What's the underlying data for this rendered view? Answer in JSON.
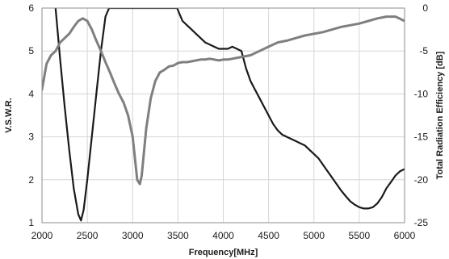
{
  "chart_data": {
    "type": "line",
    "xlabel": "Frequency[MHz]",
    "ylabel": "V.S.W.R.",
    "y2label": "Total Radiation Efficiency [dB]",
    "xlim": [
      2000,
      6000
    ],
    "ylim": [
      1,
      6
    ],
    "y2lim": [
      -25,
      0
    ],
    "xticks": [
      2000,
      2500,
      3000,
      3500,
      4000,
      4500,
      5000,
      5500,
      6000
    ],
    "yticks": [
      1,
      2,
      3,
      4,
      5,
      6
    ],
    "y2ticks": [
      0,
      -5,
      -10,
      -15,
      -20,
      -25
    ],
    "grid": true,
    "series": [
      {
        "axis": "left",
        "color": "#1a1a1a",
        "x": [
          2150,
          2200,
          2250,
          2300,
          2350,
          2400,
          2430,
          2460,
          2500,
          2550,
          2600,
          2650,
          2700,
          2740,
          3490,
          3520,
          3550,
          3600,
          3650,
          3700,
          3750,
          3800,
          3850,
          3900,
          3950,
          4000,
          4050,
          4100,
          4150,
          4200,
          4250,
          4300,
          4350,
          4400,
          4450,
          4500,
          4550,
          4600,
          4650,
          4700,
          4750,
          4800,
          4850,
          4900,
          4950,
          5000,
          5050,
          5100,
          5150,
          5200,
          5250,
          5300,
          5350,
          5400,
          5450,
          5500,
          5550,
          5600,
          5650,
          5700,
          5750,
          5800,
          5850,
          5900,
          5950,
          6000
        ],
        "y": [
          6.0,
          4.8,
          3.7,
          2.7,
          1.8,
          1.2,
          1.05,
          1.3,
          2.0,
          3.0,
          4.0,
          5.0,
          5.8,
          6.0,
          6.0,
          5.85,
          5.7,
          5.6,
          5.5,
          5.4,
          5.3,
          5.2,
          5.15,
          5.1,
          5.05,
          5.05,
          5.05,
          5.1,
          5.05,
          5.0,
          4.6,
          4.3,
          4.1,
          3.9,
          3.7,
          3.5,
          3.3,
          3.15,
          3.05,
          3.0,
          2.95,
          2.9,
          2.85,
          2.8,
          2.7,
          2.6,
          2.5,
          2.35,
          2.2,
          2.05,
          1.9,
          1.75,
          1.62,
          1.5,
          1.42,
          1.36,
          1.33,
          1.33,
          1.36,
          1.45,
          1.6,
          1.8,
          1.95,
          2.1,
          2.2,
          2.25
        ]
      },
      {
        "axis": "right",
        "color": "#7f7f7f",
        "x": [
          2000,
          2050,
          2100,
          2150,
          2200,
          2250,
          2300,
          2350,
          2400,
          2450,
          2500,
          2550,
          2600,
          2650,
          2700,
          2750,
          2800,
          2850,
          2900,
          2950,
          3000,
          3050,
          3080,
          3100,
          3150,
          3200,
          3250,
          3300,
          3350,
          3400,
          3450,
          3500,
          3550,
          3600,
          3650,
          3700,
          3750,
          3800,
          3850,
          3900,
          3950,
          4000,
          4050,
          4100,
          4150,
          4200,
          4300,
          4400,
          4500,
          4600,
          4700,
          4800,
          4900,
          5000,
          5100,
          5200,
          5300,
          5400,
          5500,
          5600,
          5700,
          5800,
          5900,
          6000
        ],
        "y": [
          -9.5,
          -6.5,
          -5.5,
          -5.0,
          -4.0,
          -3.5,
          -3.0,
          -2.2,
          -1.5,
          -1.2,
          -1.5,
          -2.5,
          -3.8,
          -5.0,
          -6.3,
          -7.5,
          -8.8,
          -10.0,
          -11.0,
          -12.5,
          -15.0,
          -20.0,
          -20.5,
          -19.5,
          -14.0,
          -10.5,
          -8.5,
          -7.5,
          -7.2,
          -6.8,
          -6.7,
          -6.4,
          -6.3,
          -6.3,
          -6.2,
          -6.1,
          -6.0,
          -6.0,
          -5.9,
          -6.0,
          -6.1,
          -6.0,
          -6.0,
          -5.9,
          -5.8,
          -5.7,
          -5.5,
          -5.0,
          -4.5,
          -4.0,
          -3.8,
          -3.5,
          -3.2,
          -3.0,
          -2.8,
          -2.5,
          -2.2,
          -2.0,
          -1.8,
          -1.5,
          -1.2,
          -1.0,
          -1.0,
          -1.5
        ]
      }
    ]
  }
}
